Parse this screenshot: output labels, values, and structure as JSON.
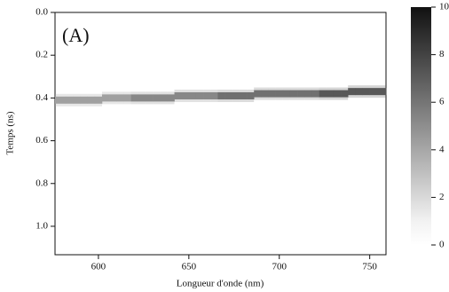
{
  "chart_data": {
    "type": "heatmap",
    "panel_label": "(A)",
    "x_label": "Longueur d'onde (nm)",
    "y_label": "Temps (ns)",
    "x": [
      580,
      584,
      588,
      592,
      596,
      600,
      604,
      608,
      612,
      616,
      620,
      624,
      628,
      632,
      636,
      640,
      644,
      648,
      652,
      656,
      660,
      664,
      668,
      672,
      676,
      680,
      684,
      688,
      692,
      696,
      700,
      704,
      708,
      712,
      716,
      720,
      724,
      728,
      732,
      736,
      740,
      744,
      748,
      752
    ],
    "values": [
      0.41,
      0.41,
      0.41,
      0.41,
      0.41,
      0.41,
      0.4,
      0.4,
      0.4,
      0.4,
      0.4,
      0.4,
      0.4,
      0.4,
      0.4,
      0.4,
      0.39,
      0.39,
      0.39,
      0.39,
      0.39,
      0.39,
      0.39,
      0.39,
      0.39,
      0.39,
      0.39,
      0.38,
      0.38,
      0.38,
      0.38,
      0.38,
      0.38,
      0.38,
      0.38,
      0.38,
      0.38,
      0.38,
      0.38,
      0.38,
      0.37,
      0.37,
      0.37,
      0.37
    ],
    "z": [
      4,
      4,
      4,
      4,
      4,
      4,
      4,
      4,
      4,
      4,
      5,
      5,
      5,
      5,
      5,
      5,
      5,
      5,
      5,
      5,
      5,
      5,
      6,
      6,
      6,
      6,
      6,
      6,
      6,
      6,
      6,
      6,
      6,
      6,
      6,
      6,
      7,
      7,
      7,
      7,
      7,
      7,
      7,
      7
    ],
    "xlim": [
      576,
      759
    ],
    "xticks": [
      600,
      650,
      700,
      750
    ],
    "ylim": [
      0,
      1.133
    ],
    "yticks": [
      {
        "value": 0,
        "label": "0.0"
      },
      0.2,
      0.4,
      0.6,
      0.8,
      {
        "value": 1,
        "label": "1.0"
      }
    ],
    "zlim": [
      0,
      10
    ],
    "zticks": [
      0,
      2,
      4,
      6,
      8,
      10
    ]
  }
}
